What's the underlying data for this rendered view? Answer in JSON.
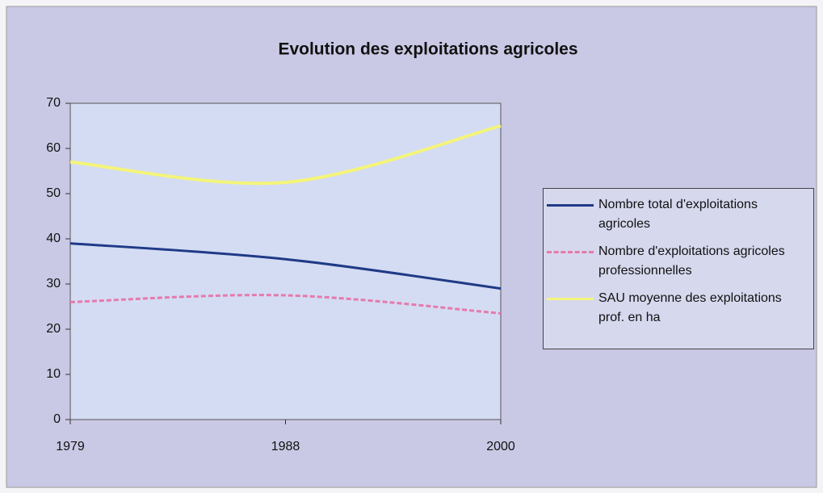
{
  "chart_data": {
    "type": "line",
    "title": "Evolution des exploitations agricoles",
    "categories": [
      "1979",
      "1988",
      "2000"
    ],
    "series": [
      {
        "name": "Nombre total d'exploitations agricoles",
        "color": "#1f3a86",
        "values": [
          39,
          35.5,
          29
        ]
      },
      {
        "name": "Nombre d'exploitations agricoles professionnelles",
        "color": "#e57aae",
        "values": [
          26,
          27.5,
          23.5
        ]
      },
      {
        "name": "SAU moyenne des exploitations prof. en ha",
        "color": "#f4f47a",
        "values": [
          57,
          52.5,
          65
        ]
      }
    ],
    "ylim": [
      0,
      70
    ],
    "yticks": [
      0,
      10,
      20,
      30,
      40,
      50,
      60,
      70
    ],
    "legend": "right"
  }
}
